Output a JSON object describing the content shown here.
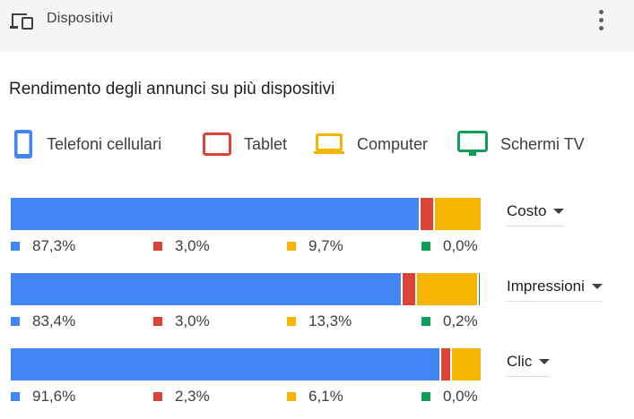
{
  "header": {
    "title": "Dispositivi",
    "icon": "devices-icon",
    "menu_icon": "more-vert-icon"
  },
  "section_title": "Rendimento degli annunci su più dispositivi",
  "legend": [
    {
      "label": "Telefoni cellulari",
      "icon": "phone-icon",
      "color": "#4285f4"
    },
    {
      "label": "Tablet",
      "icon": "tablet-icon",
      "color": "#db4437"
    },
    {
      "label": "Computer",
      "icon": "laptop-icon",
      "color": "#f4b400"
    },
    {
      "label": "Schermi TV",
      "icon": "tv-icon",
      "color": "#0f9d58"
    }
  ],
  "chart_data": {
    "type": "bar",
    "stacked": true,
    "orientation": "horizontal",
    "categories": [
      "Costo",
      "Impressioni",
      "Clic"
    ],
    "series": [
      {
        "name": "Telefoni cellulari",
        "color": "#4285f4",
        "values": [
          87.3,
          83.4,
          91.6
        ],
        "labels": [
          "87,3%",
          "83,4%",
          "91,6%"
        ]
      },
      {
        "name": "Tablet",
        "color": "#db4437",
        "values": [
          3.0,
          3.0,
          2.3
        ],
        "labels": [
          "3,0%",
          "3,0%",
          "2,3%"
        ]
      },
      {
        "name": "Computer",
        "color": "#f4b400",
        "values": [
          9.7,
          13.3,
          6.1
        ],
        "labels": [
          "9,7%",
          "13,3%",
          "6,1%"
        ]
      },
      {
        "name": "Schermi TV",
        "color": "#0f9d58",
        "values": [
          0.0,
          0.2,
          0.0
        ],
        "labels": [
          "0,0%",
          "0,2%",
          "0,0%"
        ]
      }
    ]
  },
  "metrics": [
    "Costo",
    "Impressioni",
    "Clic"
  ]
}
